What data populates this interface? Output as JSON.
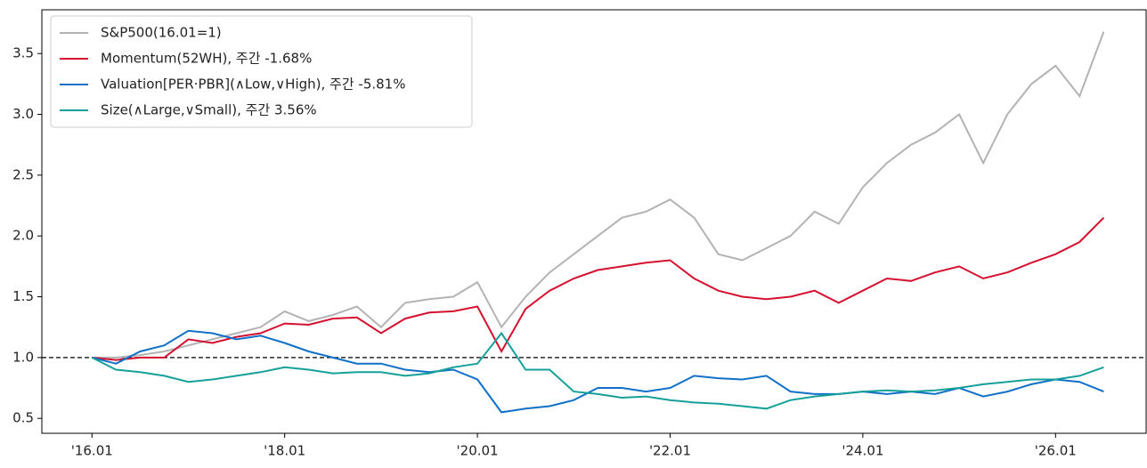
{
  "chart_data": {
    "type": "line",
    "x": [
      2016.0,
      2016.25,
      2016.5,
      2016.75,
      2017.0,
      2017.25,
      2017.5,
      2017.75,
      2018.0,
      2018.25,
      2018.5,
      2018.75,
      2019.0,
      2019.25,
      2019.5,
      2019.75,
      2020.0,
      2020.25,
      2020.5,
      2020.75,
      2021.0,
      2021.25,
      2021.5,
      2021.75,
      2022.0,
      2022.25,
      2022.5,
      2022.75,
      2023.0,
      2023.25,
      2023.5,
      2023.75,
      2024.0,
      2024.25,
      2024.5,
      2024.75,
      2025.0,
      2025.25,
      2025.5,
      2025.75,
      2026.0,
      2026.25,
      2026.5
    ],
    "series": [
      {
        "name": "S&P500(16.01=1)",
        "color": "#b3b3b3",
        "values": [
          1.0,
          1.0,
          1.02,
          1.05,
          1.1,
          1.15,
          1.2,
          1.25,
          1.38,
          1.3,
          1.35,
          1.42,
          1.25,
          1.45,
          1.48,
          1.5,
          1.62,
          1.25,
          1.5,
          1.7,
          1.85,
          2.0,
          2.15,
          2.2,
          2.3,
          2.15,
          1.85,
          1.8,
          1.9,
          2.0,
          2.2,
          2.1,
          2.4,
          2.6,
          2.75,
          2.85,
          3.0,
          2.6,
          3.0,
          3.25,
          3.4,
          3.15,
          3.68
        ]
      },
      {
        "name": "Momentum(52WH), 주간 -1.68%",
        "color": "#d6102f",
        "values": [
          1.0,
          0.98,
          1.0,
          1.0,
          1.15,
          1.12,
          1.17,
          1.2,
          1.28,
          1.27,
          1.32,
          1.33,
          1.2,
          1.32,
          1.37,
          1.38,
          1.42,
          1.05,
          1.4,
          1.55,
          1.65,
          1.72,
          1.75,
          1.78,
          1.8,
          1.65,
          1.55,
          1.5,
          1.48,
          1.5,
          1.55,
          1.45,
          1.55,
          1.65,
          1.63,
          1.7,
          1.75,
          1.65,
          1.7,
          1.78,
          1.85,
          1.95,
          2.15
        ]
      },
      {
        "name": "Valuation[PER·PBR](∧Low,∨High), 주간 -5.81%",
        "color": "#1170c8",
        "values": [
          1.0,
          0.95,
          1.05,
          1.1,
          1.22,
          1.2,
          1.15,
          1.18,
          1.12,
          1.05,
          1.0,
          0.95,
          0.95,
          0.9,
          0.88,
          0.9,
          0.82,
          0.55,
          0.58,
          0.6,
          0.65,
          0.75,
          0.75,
          0.72,
          0.75,
          0.85,
          0.83,
          0.82,
          0.85,
          0.72,
          0.7,
          0.7,
          0.72,
          0.7,
          0.72,
          0.7,
          0.75,
          0.68,
          0.72,
          0.78,
          0.82,
          0.8,
          0.72
        ]
      },
      {
        "name": "Size(∧Large,∨Small), 주간 3.56%",
        "color": "#16a09a",
        "values": [
          1.0,
          0.9,
          0.88,
          0.85,
          0.8,
          0.82,
          0.85,
          0.88,
          0.92,
          0.9,
          0.87,
          0.88,
          0.88,
          0.85,
          0.87,
          0.92,
          0.95,
          1.2,
          0.9,
          0.9,
          0.72,
          0.7,
          0.67,
          0.68,
          0.65,
          0.63,
          0.62,
          0.6,
          0.58,
          0.65,
          0.68,
          0.7,
          0.72,
          0.73,
          0.72,
          0.73,
          0.75,
          0.78,
          0.8,
          0.82,
          0.82,
          0.85,
          0.92
        ]
      }
    ],
    "hline": 1.0,
    "xlim": [
      2015.48,
      2026.94
    ],
    "ylim": [
      0.377,
      3.86
    ],
    "xticks": [
      {
        "value": 2016,
        "label": "'16.01"
      },
      {
        "value": 2018,
        "label": "'18.01"
      },
      {
        "value": 2020,
        "label": "'20.01"
      },
      {
        "value": 2022,
        "label": "'22.01"
      },
      {
        "value": 2024,
        "label": "'24.01"
      },
      {
        "value": 2026,
        "label": "'26.01"
      }
    ],
    "yticks": [
      0.5,
      {
        "value": 1,
        "label": "1.0"
      },
      1.5,
      {
        "value": 2,
        "label": "2.0"
      },
      2.5,
      {
        "value": 3,
        "label": "3.0"
      },
      3.5
    ],
    "legend": "upper left"
  }
}
